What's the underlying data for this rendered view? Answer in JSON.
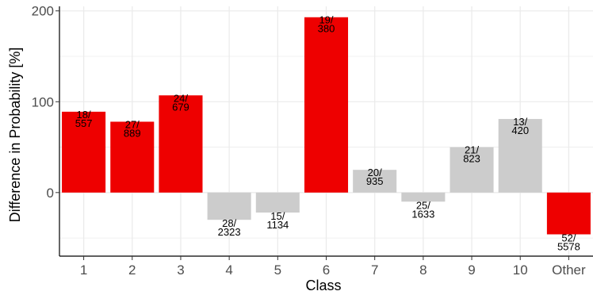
{
  "chart_data": {
    "type": "bar",
    "xlabel": "Class",
    "ylabel": "Difference in Probability [%]",
    "categories": [
      "1",
      "2",
      "3",
      "4",
      "5",
      "6",
      "7",
      "8",
      "9",
      "10",
      "Other"
    ],
    "values": [
      89,
      78,
      107,
      -30,
      -22,
      193,
      25,
      -10,
      50,
      81,
      -46
    ],
    "labels": [
      [
        "18/",
        "557"
      ],
      [
        "27/",
        "889"
      ],
      [
        "24/",
        "679"
      ],
      [
        "28/",
        "2323"
      ],
      [
        "15/",
        "1134"
      ],
      [
        "19/",
        "380"
      ],
      [
        "20/",
        "935"
      ],
      [
        "25/",
        "1633"
      ],
      [
        "21/",
        "823"
      ],
      [
        "13/",
        "420"
      ],
      [
        "52/",
        "5578"
      ]
    ],
    "highlighted": [
      true,
      true,
      true,
      false,
      false,
      true,
      false,
      false,
      false,
      false,
      true
    ],
    "colors": {
      "highlight": "#ee0000",
      "normal": "#cccccc",
      "grid": "#ebebeb",
      "axis": "#000000"
    },
    "yticks": [
      0,
      100,
      200
    ],
    "ylim": [
      -70,
      205
    ],
    "grid": true,
    "legend": "none"
  }
}
